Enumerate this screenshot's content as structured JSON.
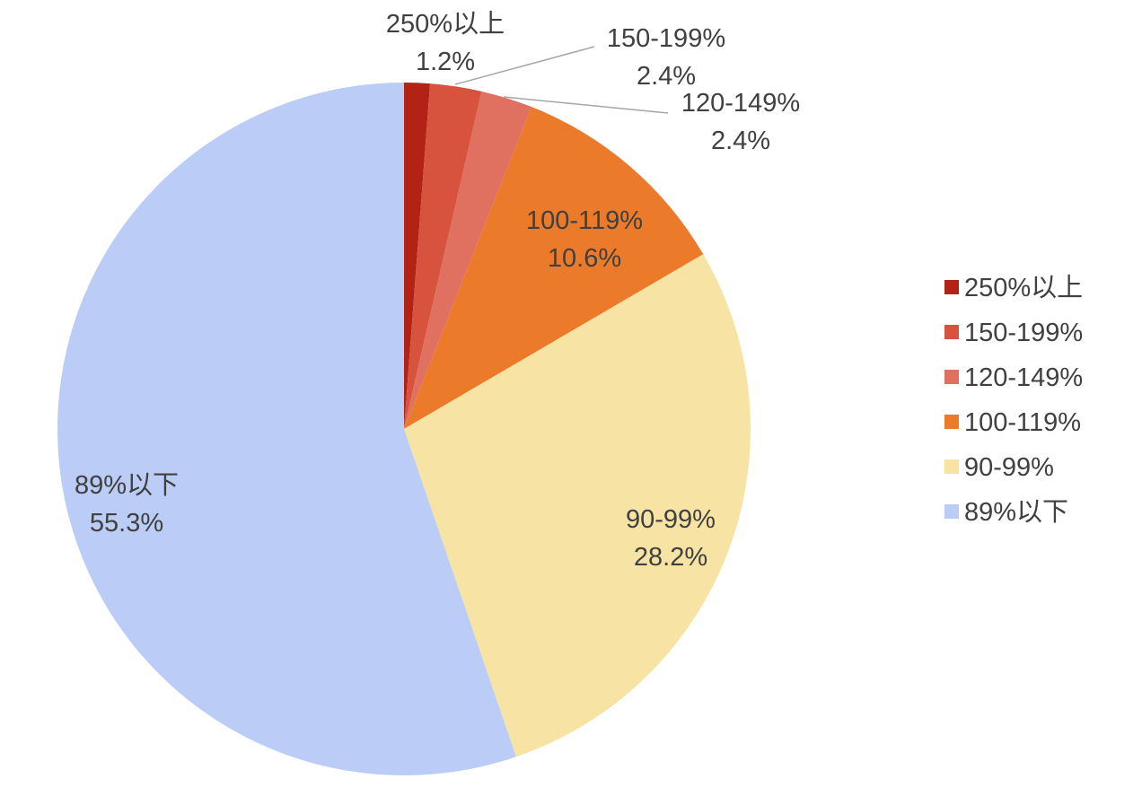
{
  "chart_data": {
    "type": "pie",
    "start_angle_deg": 0,
    "direction": "clockwise",
    "legend_position": "right",
    "slices": [
      {
        "label": "250%以上",
        "value": 1.2,
        "value_label": "1.2%",
        "color": "#B22315"
      },
      {
        "label": "150-199%",
        "value": 2.4,
        "value_label": "2.4%",
        "color": "#D8533D"
      },
      {
        "label": "120-149%",
        "value": 2.4,
        "value_label": "2.4%",
        "color": "#E07060"
      },
      {
        "label": "100-119%",
        "value": 10.6,
        "value_label": "10.6%",
        "color": "#EC7A2B"
      },
      {
        "label": "90-99%",
        "value": 28.2,
        "value_label": "28.2%",
        "color": "#F7E4A4"
      },
      {
        "label": "89%以下",
        "value": 55.3,
        "value_label": "55.3%",
        "color": "#BBCDF6"
      }
    ],
    "label_text_color": "#404040",
    "leader_line_color": "#A6A6A6"
  }
}
